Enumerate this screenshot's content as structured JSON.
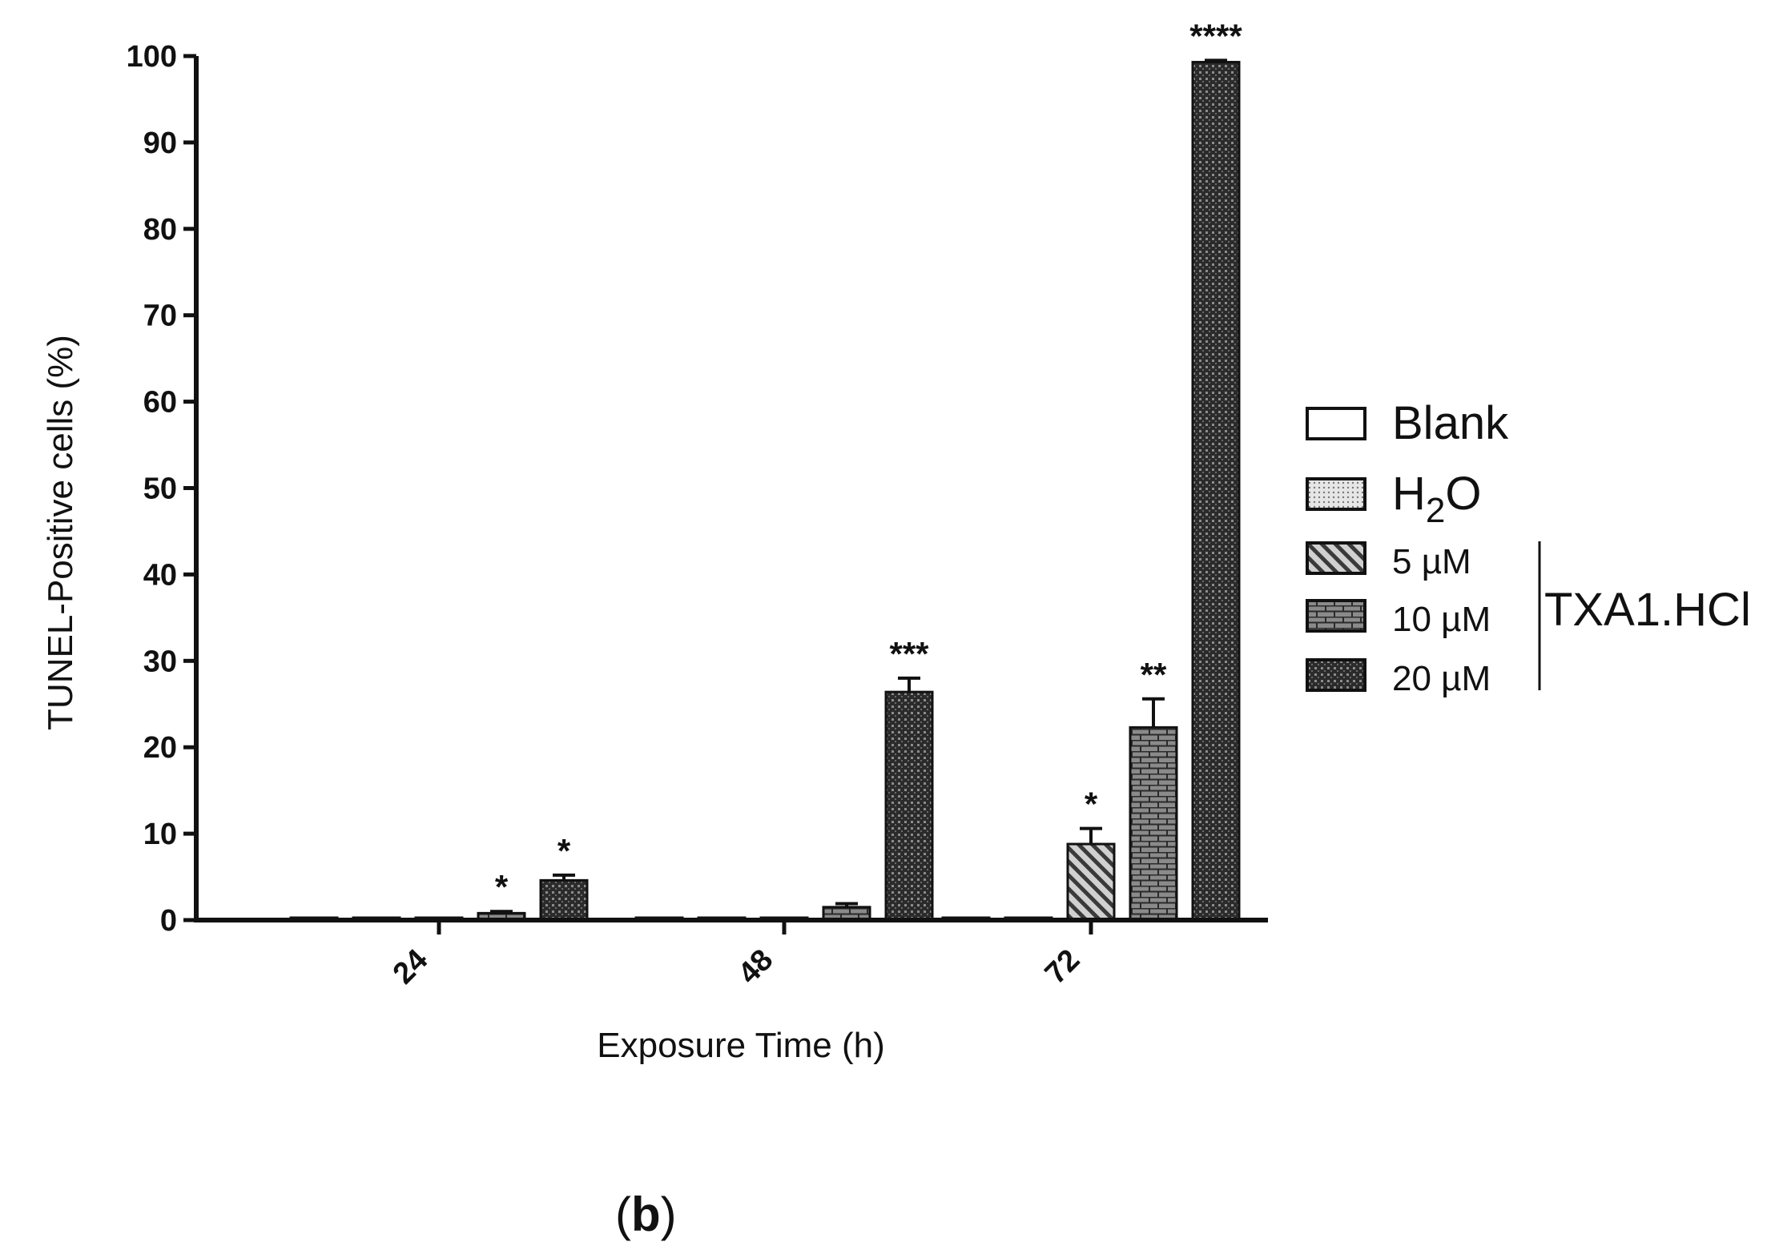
{
  "chart_data": {
    "type": "bar",
    "title": "",
    "xlabel": "Exposure Time (h)",
    "ylabel": "TUNEL-Positive cells (%)",
    "ylim": [
      0,
      100
    ],
    "yticks": [
      "0",
      "10",
      "20",
      "30",
      "40",
      "50",
      "60",
      "70",
      "80",
      "90",
      "100"
    ],
    "categories": [
      "24",
      "48",
      "72"
    ],
    "series": [
      {
        "name": "Blank",
        "pattern": "white",
        "values": [
          0,
          0,
          0
        ],
        "errors": [
          0,
          0,
          0
        ],
        "sig": [
          "",
          "",
          ""
        ]
      },
      {
        "name": "H",
        "sub": "2",
        "name_tail": "O",
        "pattern": "dots",
        "values": [
          0,
          0,
          0
        ],
        "errors": [
          0,
          0,
          0
        ],
        "sig": [
          "",
          "",
          ""
        ]
      },
      {
        "name": "5 µM",
        "pattern": "diag",
        "values": [
          0.2,
          0.2,
          8.8
        ],
        "errors": [
          0,
          0,
          1.8
        ],
        "sig": [
          "",
          "",
          "*"
        ]
      },
      {
        "name": "10 µM",
        "pattern": "brick",
        "values": [
          0.8,
          1.5,
          22.3
        ],
        "errors": [
          0.2,
          0.4,
          3.3
        ],
        "sig": [
          "*",
          "",
          "**"
        ]
      },
      {
        "name": "20 µM",
        "pattern": "dense",
        "values": [
          4.6,
          26.4,
          99.3
        ],
        "errors": [
          0.6,
          1.6,
          0.2
        ],
        "sig": [
          "*",
          "***",
          "****"
        ]
      }
    ],
    "group_label": "TXA1.HCl",
    "legend_position": "right"
  },
  "panel_label": {
    "open": "(",
    "letter": "b",
    "close": ")"
  },
  "colors": {
    "ink": "#111111",
    "fill_dark": "#2b2b2b",
    "fill_mid": "#7a7a7a"
  }
}
